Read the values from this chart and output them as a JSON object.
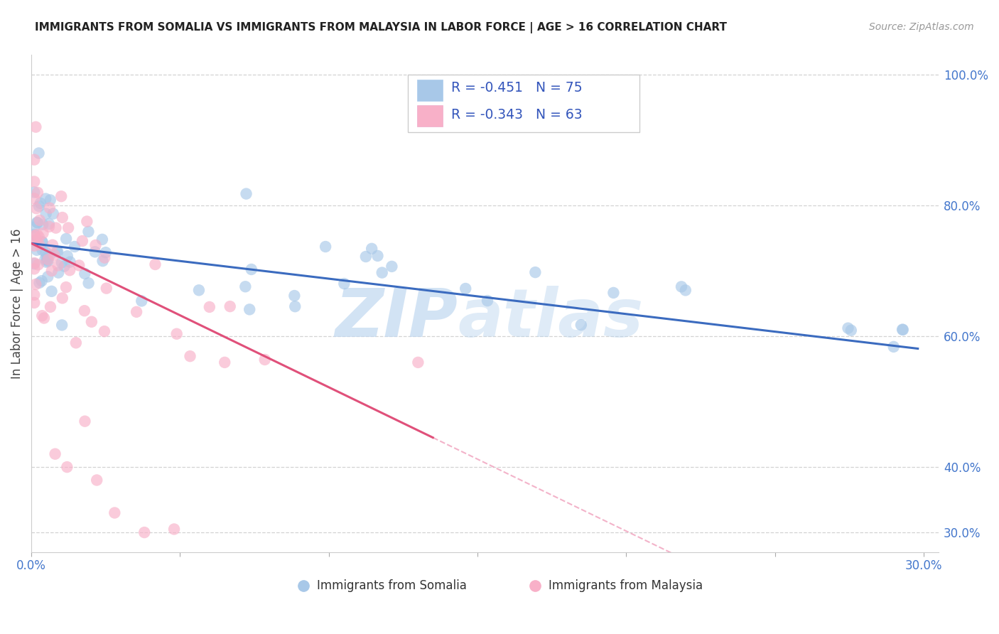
{
  "title": "IMMIGRANTS FROM SOMALIA VS IMMIGRANTS FROM MALAYSIA IN LABOR FORCE | AGE > 16 CORRELATION CHART",
  "source": "Source: ZipAtlas.com",
  "ylabel": "In Labor Force | Age > 16",
  "xlim": [
    0.0,
    0.305
  ],
  "ylim": [
    0.27,
    1.03
  ],
  "background_color": "#ffffff",
  "grid_color": "#cccccc",
  "legend_R1": "-0.451",
  "legend_N1": "75",
  "legend_R2": "-0.343",
  "legend_N2": "63",
  "blue_scatter_color": "#a8c8e8",
  "pink_scatter_color": "#f8b0c8",
  "blue_line_color": "#3b6bbf",
  "pink_line_color": "#e0507a",
  "pink_dash_color": "#f0a0bc",
  "ytick_positions": [
    1.0,
    0.8,
    0.6,
    0.4,
    0.3
  ],
  "ytick_labels": [
    "100.0%",
    "80.0%",
    "60.0%",
    "40.0%",
    "30.0%"
  ],
  "blue_intercept": 0.742,
  "blue_slope": -0.54,
  "pink_intercept": 0.742,
  "pink_slope": -2.2,
  "pink_line_xend": 0.135,
  "blue_line_xend": 0.298
}
